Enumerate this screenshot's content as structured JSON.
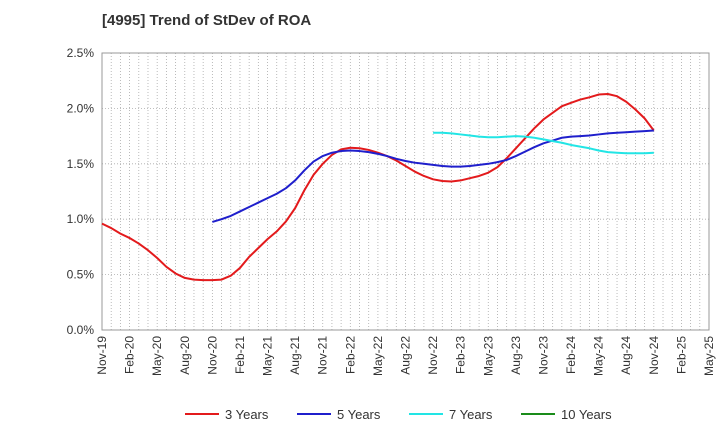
{
  "chart_data": {
    "type": "line",
    "title": "[4995]  Trend of StDev of ROA",
    "xlabel": "",
    "ylabel": "",
    "ylim": [
      0,
      2.5
    ],
    "y_ticks": [
      0,
      0.5,
      1.0,
      1.5,
      2.0,
      2.5
    ],
    "y_tick_labels": [
      "0.0%",
      "0.5%",
      "1.0%",
      "1.5%",
      "2.0%",
      "2.5%"
    ],
    "x_tick_labels": [
      "Nov-19",
      "Feb-20",
      "May-20",
      "Aug-20",
      "Nov-20",
      "Feb-21",
      "May-21",
      "Aug-21",
      "Nov-21",
      "Feb-22",
      "May-22",
      "Aug-22",
      "Nov-22",
      "Feb-23",
      "May-23",
      "Aug-23",
      "Nov-23",
      "Feb-24",
      "May-24",
      "Aug-24",
      "Nov-24",
      "Feb-25",
      "May-25"
    ],
    "grid": true,
    "legend_position": "bottom",
    "series": [
      {
        "name": "3 Years",
        "color": "#e31a1c",
        "points": [
          [
            "Nov-19",
            0.96
          ],
          [
            "Dec-19",
            0.92
          ],
          [
            "Jan-20",
            0.87
          ],
          [
            "Feb-20",
            0.83
          ],
          [
            "Mar-20",
            0.78
          ],
          [
            "Apr-20",
            0.72
          ],
          [
            "May-20",
            0.65
          ],
          [
            "Jun-20",
            0.57
          ],
          [
            "Jul-20",
            0.51
          ],
          [
            "Aug-20",
            0.47
          ],
          [
            "Sep-20",
            0.455
          ],
          [
            "Oct-20",
            0.45
          ],
          [
            "Nov-20",
            0.45
          ],
          [
            "Dec-20",
            0.455
          ],
          [
            "Jan-21",
            0.49
          ],
          [
            "Feb-21",
            0.56
          ],
          [
            "Mar-21",
            0.66
          ],
          [
            "Apr-21",
            0.74
          ],
          [
            "May-21",
            0.82
          ],
          [
            "Jun-21",
            0.89
          ],
          [
            "Jul-21",
            0.98
          ],
          [
            "Aug-21",
            1.1
          ],
          [
            "Sep-21",
            1.26
          ],
          [
            "Oct-21",
            1.4
          ],
          [
            "Nov-21",
            1.5
          ],
          [
            "Dec-21",
            1.58
          ],
          [
            "Jan-22",
            1.63
          ],
          [
            "Feb-22",
            1.645
          ],
          [
            "Mar-22",
            1.64
          ],
          [
            "Apr-22",
            1.625
          ],
          [
            "May-22",
            1.6
          ],
          [
            "Jun-22",
            1.57
          ],
          [
            "Jul-22",
            1.53
          ],
          [
            "Aug-22",
            1.48
          ],
          [
            "Sep-22",
            1.43
          ],
          [
            "Oct-22",
            1.39
          ],
          [
            "Nov-22",
            1.36
          ],
          [
            "Dec-22",
            1.345
          ],
          [
            "Jan-23",
            1.34
          ],
          [
            "Feb-23",
            1.35
          ],
          [
            "Mar-23",
            1.37
          ],
          [
            "Apr-23",
            1.39
          ],
          [
            "May-23",
            1.42
          ],
          [
            "Jun-23",
            1.47
          ],
          [
            "Jul-23",
            1.55
          ],
          [
            "Aug-23",
            1.64
          ],
          [
            "Sep-23",
            1.73
          ],
          [
            "Oct-23",
            1.82
          ],
          [
            "Nov-23",
            1.9
          ],
          [
            "Dec-23",
            1.96
          ],
          [
            "Jan-24",
            2.02
          ],
          [
            "Feb-24",
            2.05
          ],
          [
            "Mar-24",
            2.08
          ],
          [
            "Apr-24",
            2.1
          ],
          [
            "May-24",
            2.125
          ],
          [
            "Jun-24",
            2.13
          ],
          [
            "Jul-24",
            2.11
          ],
          [
            "Aug-24",
            2.06
          ],
          [
            "Sep-24",
            1.99
          ],
          [
            "Oct-24",
            1.91
          ],
          [
            "Nov-24",
            1.8
          ]
        ]
      },
      {
        "name": "5 Years",
        "color": "#1f1fcc",
        "points": [
          [
            "Nov-20",
            0.975
          ],
          [
            "Dec-20",
            1.0
          ],
          [
            "Jan-21",
            1.03
          ],
          [
            "Feb-21",
            1.07
          ],
          [
            "Mar-21",
            1.11
          ],
          [
            "Apr-21",
            1.15
          ],
          [
            "May-21",
            1.19
          ],
          [
            "Jun-21",
            1.23
          ],
          [
            "Jul-21",
            1.28
          ],
          [
            "Aug-21",
            1.35
          ],
          [
            "Sep-21",
            1.44
          ],
          [
            "Oct-21",
            1.52
          ],
          [
            "Nov-21",
            1.57
          ],
          [
            "Dec-21",
            1.6
          ],
          [
            "Jan-22",
            1.615
          ],
          [
            "Feb-22",
            1.62
          ],
          [
            "Mar-22",
            1.615
          ],
          [
            "Apr-22",
            1.605
          ],
          [
            "May-22",
            1.59
          ],
          [
            "Jun-22",
            1.57
          ],
          [
            "Jul-22",
            1.545
          ],
          [
            "Aug-22",
            1.525
          ],
          [
            "Sep-22",
            1.51
          ],
          [
            "Oct-22",
            1.5
          ],
          [
            "Nov-22",
            1.49
          ],
          [
            "Dec-22",
            1.48
          ],
          [
            "Jan-23",
            1.475
          ],
          [
            "Feb-23",
            1.475
          ],
          [
            "Mar-23",
            1.48
          ],
          [
            "Apr-23",
            1.49
          ],
          [
            "May-23",
            1.5
          ],
          [
            "Jun-23",
            1.515
          ],
          [
            "Jul-23",
            1.535
          ],
          [
            "Aug-23",
            1.57
          ],
          [
            "Sep-23",
            1.61
          ],
          [
            "Oct-23",
            1.65
          ],
          [
            "Nov-23",
            1.685
          ],
          [
            "Dec-23",
            1.71
          ],
          [
            "Jan-24",
            1.735
          ],
          [
            "Feb-24",
            1.745
          ],
          [
            "Mar-24",
            1.75
          ],
          [
            "Apr-24",
            1.755
          ],
          [
            "May-24",
            1.765
          ],
          [
            "Jun-24",
            1.775
          ],
          [
            "Jul-24",
            1.78
          ],
          [
            "Aug-24",
            1.785
          ],
          [
            "Sep-24",
            1.79
          ],
          [
            "Oct-24",
            1.795
          ],
          [
            "Nov-24",
            1.8
          ]
        ]
      },
      {
        "name": "7 Years",
        "color": "#22e5e5",
        "points": [
          [
            "Nov-22",
            1.78
          ],
          [
            "Dec-22",
            1.78
          ],
          [
            "Jan-23",
            1.775
          ],
          [
            "Feb-23",
            1.765
          ],
          [
            "Mar-23",
            1.755
          ],
          [
            "Apr-23",
            1.745
          ],
          [
            "May-23",
            1.74
          ],
          [
            "Jun-23",
            1.74
          ],
          [
            "Jul-23",
            1.745
          ],
          [
            "Aug-23",
            1.75
          ],
          [
            "Sep-23",
            1.745
          ],
          [
            "Oct-23",
            1.735
          ],
          [
            "Nov-23",
            1.72
          ],
          [
            "Dec-23",
            1.705
          ],
          [
            "Jan-24",
            1.69
          ],
          [
            "Feb-24",
            1.67
          ],
          [
            "Mar-24",
            1.655
          ],
          [
            "Apr-24",
            1.64
          ],
          [
            "May-24",
            1.62
          ],
          [
            "Jun-24",
            1.605
          ],
          [
            "Jul-24",
            1.6
          ],
          [
            "Aug-24",
            1.595
          ],
          [
            "Sep-24",
            1.595
          ],
          [
            "Oct-24",
            1.595
          ],
          [
            "Nov-24",
            1.6
          ]
        ]
      },
      {
        "name": "10 Years",
        "color": "#1a8c1a",
        "points": []
      }
    ]
  }
}
